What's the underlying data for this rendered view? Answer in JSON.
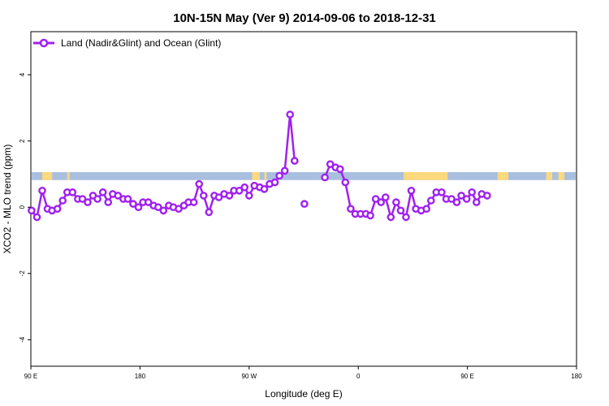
{
  "chart_data": {
    "type": "line",
    "title": "10N-15N May (Ver 9)   2014-09-06 to 2018-12-31",
    "xlabel": "Longitude (deg E)",
    "ylabel": "XCO2 - MLO trend (ppm)",
    "xlim": [
      90,
      450
    ],
    "ylim": [
      -4.8,
      5.3
    ],
    "x_tick_values": [
      90,
      162,
      234,
      306,
      378,
      450
    ],
    "x_tick_labels": [
      "90 E",
      "180",
      "90 W",
      "0",
      "90 E",
      "180"
    ],
    "y_tick_values": [
      -4,
      -2,
      0,
      2,
      4
    ],
    "y_tick_labels": [
      "-4",
      "-2",
      "0",
      "2",
      "4"
    ],
    "grid": false,
    "legend_position": "top-left",
    "land_ocean_band": {
      "y_range": [
        0.82,
        1.06
      ],
      "ocean_color": "#a9bfe0",
      "land_color": "#fcd97d",
      "land_spans": [
        [
          97.5,
          104
        ],
        [
          114,
          115.5
        ],
        [
          236,
          241
        ],
        [
          244,
          245.5
        ],
        [
          336,
          365
        ],
        [
          398,
          405
        ],
        [
          430,
          434
        ],
        [
          438,
          442
        ],
        [
          453,
          454
        ]
      ]
    },
    "series": [
      {
        "name": "Land (Nadir&Glint) and Ocean (Glint)",
        "color": "#a020f0",
        "points": [
          [
            90.5,
            -0.1
          ],
          [
            94,
            -0.3
          ],
          [
            97.5,
            0.5
          ],
          [
            101,
            -0.05
          ],
          [
            104,
            -0.1
          ],
          [
            107.5,
            -0.05
          ],
          [
            111,
            0.2
          ],
          [
            114,
            0.45
          ],
          [
            117.5,
            0.45
          ],
          [
            121,
            0.25
          ],
          [
            124,
            0.25
          ],
          [
            127.5,
            0.15
          ],
          [
            131,
            0.35
          ],
          [
            134,
            0.25
          ],
          [
            137.5,
            0.45
          ],
          [
            141,
            0.15
          ],
          [
            144,
            0.4
          ],
          [
            147.5,
            0.35
          ],
          [
            151,
            0.25
          ],
          [
            154,
            0.25
          ],
          [
            157.5,
            0.1
          ],
          [
            161,
            0.0
          ],
          [
            164,
            0.15
          ],
          [
            167.5,
            0.15
          ],
          [
            171,
            0.05
          ],
          [
            174,
            0.0
          ],
          [
            177.5,
            -0.1
          ],
          [
            181,
            0.05
          ],
          [
            184,
            0.0
          ],
          [
            187.5,
            -0.05
          ],
          [
            191,
            0.05
          ],
          [
            194,
            0.15
          ],
          [
            197.5,
            0.15
          ],
          [
            201,
            0.7
          ],
          [
            204,
            0.35
          ],
          [
            207.5,
            -0.15
          ],
          [
            211,
            0.35
          ],
          [
            214,
            0.3
          ],
          [
            217.5,
            0.4
          ],
          [
            221,
            0.35
          ],
          [
            224,
            0.5
          ],
          [
            227.5,
            0.5
          ],
          [
            231,
            0.6
          ],
          [
            234,
            0.35
          ],
          [
            237.5,
            0.65
          ],
          [
            241,
            0.6
          ],
          [
            244,
            0.55
          ],
          [
            247.5,
            0.7
          ],
          [
            251,
            0.75
          ],
          [
            254,
            0.95
          ],
          [
            257.5,
            1.1
          ],
          [
            261,
            2.8
          ],
          [
            264,
            1.4
          ],
          null,
          [
            270.5,
            0.1
          ],
          null,
          [
            284,
            0.9
          ],
          [
            287.5,
            1.3
          ],
          [
            291,
            1.2
          ],
          [
            294,
            1.15
          ],
          [
            297.5,
            0.75
          ],
          [
            301,
            -0.05
          ],
          [
            304,
            -0.2
          ],
          [
            307.5,
            -0.2
          ],
          [
            311,
            -0.2
          ],
          [
            314,
            -0.25
          ],
          [
            317.5,
            0.25
          ],
          [
            321,
            0.15
          ],
          [
            324,
            0.3
          ],
          [
            327.5,
            -0.3
          ],
          [
            331,
            0.15
          ],
          [
            334,
            -0.1
          ],
          [
            337.5,
            -0.3
          ],
          [
            341,
            0.5
          ],
          [
            344,
            -0.05
          ],
          [
            347.5,
            -0.1
          ],
          [
            351,
            -0.05
          ],
          [
            354,
            0.2
          ],
          [
            357.5,
            0.45
          ],
          [
            361,
            0.45
          ],
          [
            364,
            0.25
          ],
          [
            367.5,
            0.25
          ],
          [
            371,
            0.15
          ],
          [
            374,
            0.35
          ],
          [
            377.5,
            0.25
          ],
          [
            381,
            0.45
          ],
          [
            384,
            0.15
          ],
          [
            387.5,
            0.4
          ],
          [
            391,
            0.35
          ]
        ]
      }
    ]
  }
}
